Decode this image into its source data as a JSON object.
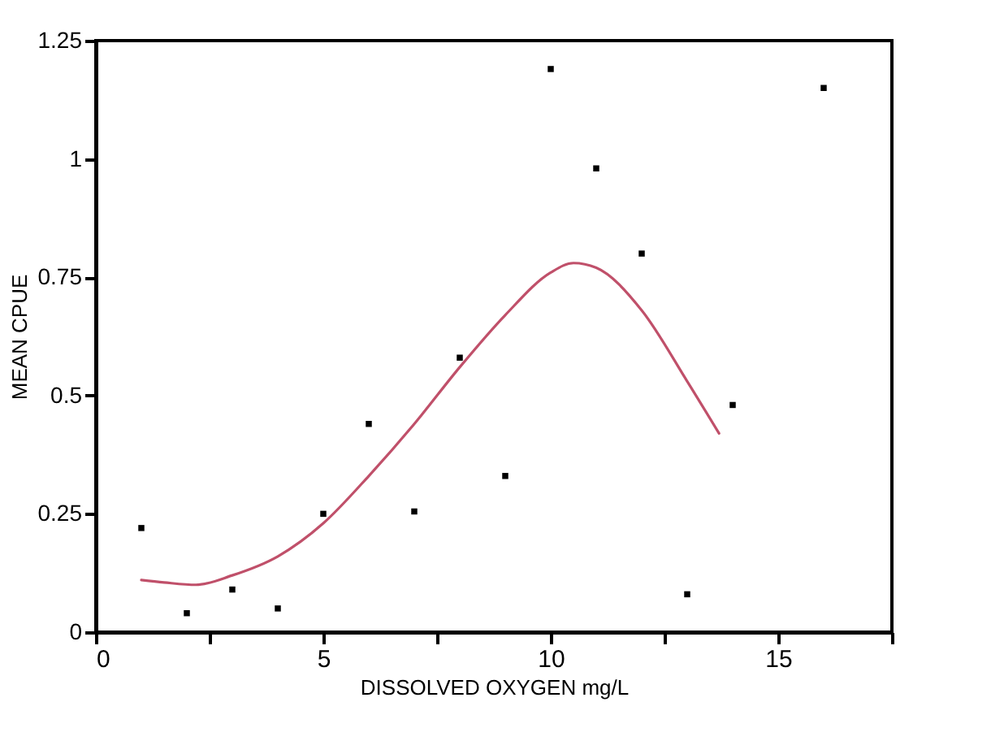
{
  "chart_data": {
    "type": "scatter",
    "xlabel": "DISSOLVED OXYGEN mg/L",
    "ylabel": "MEAN CPUE",
    "xlim": [
      0,
      17.5
    ],
    "xticks": [
      0,
      {
        "value": 2.5,
        "label": null
      },
      5,
      {
        "value": 7.5,
        "label": null
      },
      10,
      {
        "value": 12.5,
        "label": null
      },
      15,
      {
        "value": 17.5,
        "label": null
      }
    ],
    "ylim": [
      0,
      1.25
    ],
    "yticks": [
      0,
      0.25,
      0.5,
      0.75,
      1,
      1.25
    ],
    "grid": false,
    "series": [
      {
        "marker": "square",
        "color": "#000000",
        "x": [
          1,
          2,
          3,
          4,
          5,
          6,
          7,
          8,
          9,
          10,
          11,
          12,
          13,
          14,
          16
        ],
        "values": [
          0.22,
          0.04,
          0.09,
          0.05,
          0.25,
          0.44,
          0.255,
          0.58,
          0.33,
          1.19,
          0.98,
          0.8,
          0.08,
          0.48,
          1.15
        ]
      },
      {
        "type": "line",
        "marker": "none",
        "line_style": "solid",
        "color": "#c0506a",
        "x": [
          1,
          1.5,
          2.2,
          3,
          4,
          5,
          6,
          7,
          8,
          9,
          10,
          10.5,
          11,
          12,
          13,
          13.7
        ],
        "values": [
          0.11,
          0.105,
          0.1,
          0.12,
          0.16,
          0.23,
          0.33,
          0.44,
          0.56,
          0.67,
          0.76,
          0.78,
          0.77,
          0.68,
          0.53,
          0.42
        ]
      }
    ]
  }
}
